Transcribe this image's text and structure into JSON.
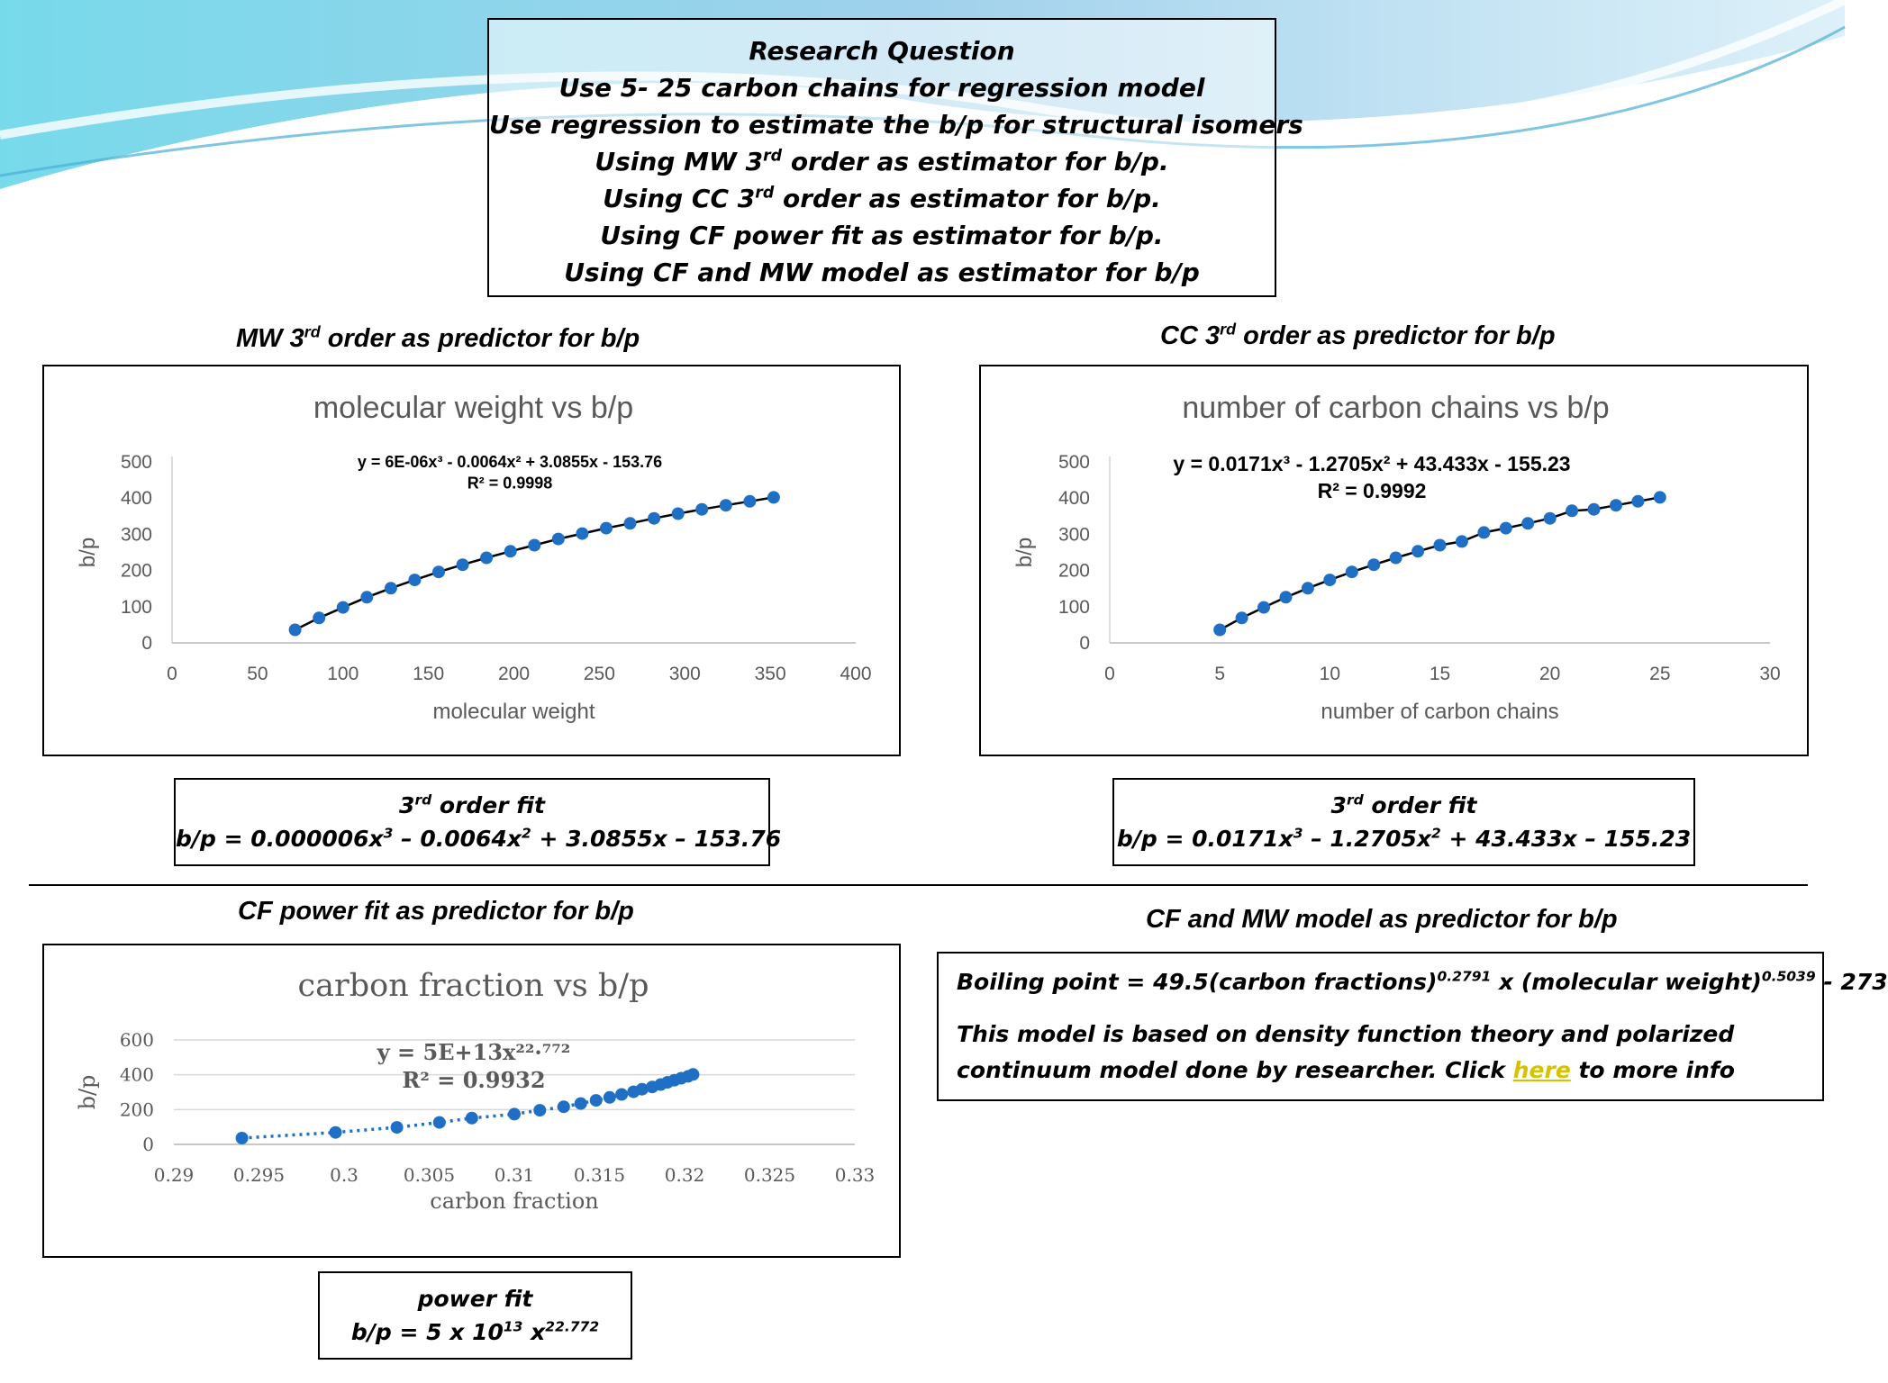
{
  "research": {
    "lines": [
      "Research Question",
      "Use 5- 25 carbon chains for regression model",
      "Use regression to estimate the b/p for structural isomers",
      "Using MW 3rd order as estimator for b/p.",
      "Using CC 3rd order as estimator for b/p.",
      "Using CF power fit as estimator for b/p.",
      "Using CF and MW model as estimator for b/p"
    ]
  },
  "sections": {
    "mw_title": "MW 3rd order as predictor for b/p",
    "cc_title": "CC 3rd order as predictor for b/p",
    "cf_title": "CF power fit as predictor for b/p",
    "model_title": "CF and MW model as predictor for b/p"
  },
  "fits": {
    "mw": {
      "heading": "3rd order fit",
      "formula": "b/p = 0.000006x3 – 0.0064x2 + 3.0855x – 153.76"
    },
    "cc": {
      "heading": "3rd order fit",
      "formula": "b/p = 0.0171x3 – 1.2705x2 + 43.433x – 155.23"
    },
    "cf": {
      "heading": "power fit",
      "formula": "b/p = 5 x 1013 x22.772"
    }
  },
  "model": {
    "equation": "Boiling point = 49.5(carbon fractions)0.2791 x (molecular weight)0.5039 - 273",
    "description": "This model is based on density function theory and polarized continuum model done by researcher. Click here to more info",
    "link_text": "here"
  },
  "chart_data": [
    {
      "type": "scatter",
      "title": "molecular weight vs b/p",
      "xlabel": "molecular weight",
      "ylabel": "b/p",
      "xlim": [
        0,
        400
      ],
      "ylim": [
        0,
        500
      ],
      "xticks": [
        "0",
        "50",
        "100",
        "150",
        "200",
        "250",
        "300",
        "350",
        "400"
      ],
      "yticks": [
        "0",
        "100",
        "200",
        "300",
        "400",
        "500"
      ],
      "trendline": "y = 6E-06x³ - 0.0064x² + 3.0855x - 153.76",
      "r2": "R² = 0.9998",
      "trend_style": "solid",
      "color": "#1f6fc4",
      "series": [
        {
          "x": [
            72,
            86,
            100,
            114,
            128,
            142,
            156,
            170,
            184,
            198,
            212,
            226,
            240,
            254,
            268,
            282,
            296,
            310,
            324,
            338,
            352
          ],
          "y": [
            36,
            69,
            98,
            126,
            151,
            174,
            196,
            216,
            235,
            253,
            270,
            287,
            302,
            317,
            330,
            344,
            357,
            369,
            380,
            391,
            402
          ]
        }
      ]
    },
    {
      "type": "scatter",
      "title": "number of carbon chains vs b/p",
      "xlabel": "number of carbon chains",
      "ylabel": "b/p",
      "xlim": [
        0,
        30
      ],
      "ylim": [
        0,
        500
      ],
      "xticks": [
        "0",
        "5",
        "10",
        "15",
        "20",
        "25",
        "30"
      ],
      "yticks": [
        "0",
        "100",
        "200",
        "300",
        "400",
        "500"
      ],
      "trendline": "y = 0.0171x³ - 1.2705x² + 43.433x - 155.23",
      "r2": "R² = 0.9992",
      "trend_style": "solid",
      "color": "#1f6fc4",
      "series": [
        {
          "x": [
            5,
            6,
            7,
            8,
            9,
            10,
            11,
            12,
            13,
            14,
            15,
            16,
            17,
            18,
            19,
            20,
            21,
            22,
            23,
            24,
            25
          ],
          "y": [
            36,
            69,
            98,
            126,
            151,
            174,
            196,
            216,
            235,
            253,
            270,
            280,
            305,
            317,
            330,
            344,
            365,
            369,
            380,
            391,
            402
          ]
        }
      ]
    },
    {
      "type": "scatter",
      "title": "carbon fraction vs b/p",
      "xlabel": "carbon fraction",
      "ylabel": "b/p",
      "xlim": [
        0.29,
        0.33
      ],
      "ylim": [
        0,
        600
      ],
      "xticks": [
        "0.29",
        "0.295",
        "0.3",
        "0.305",
        "0.31",
        "0.315",
        "0.32",
        "0.325",
        "0.33"
      ],
      "yticks": [
        "0",
        "200",
        "400",
        "600"
      ],
      "trendline": "y = 5E+13x²²·⁷⁷²",
      "r2": "R² = 0.9932",
      "trend_style": "dotted",
      "color": "#1f6fc4",
      "series": [
        {
          "x": [
            0.294,
            0.2995,
            0.3031,
            0.3056,
            0.3075,
            0.31,
            0.3115,
            0.3129,
            0.3139,
            0.3148,
            0.3156,
            0.3163,
            0.317,
            0.3175,
            0.3181,
            0.3186,
            0.319,
            0.3194,
            0.3198,
            0.3202,
            0.3205
          ],
          "y": [
            36,
            69,
            98,
            126,
            151,
            174,
            196,
            216,
            235,
            253,
            270,
            287,
            302,
            317,
            330,
            344,
            357,
            369,
            380,
            391,
            402
          ]
        }
      ]
    }
  ]
}
